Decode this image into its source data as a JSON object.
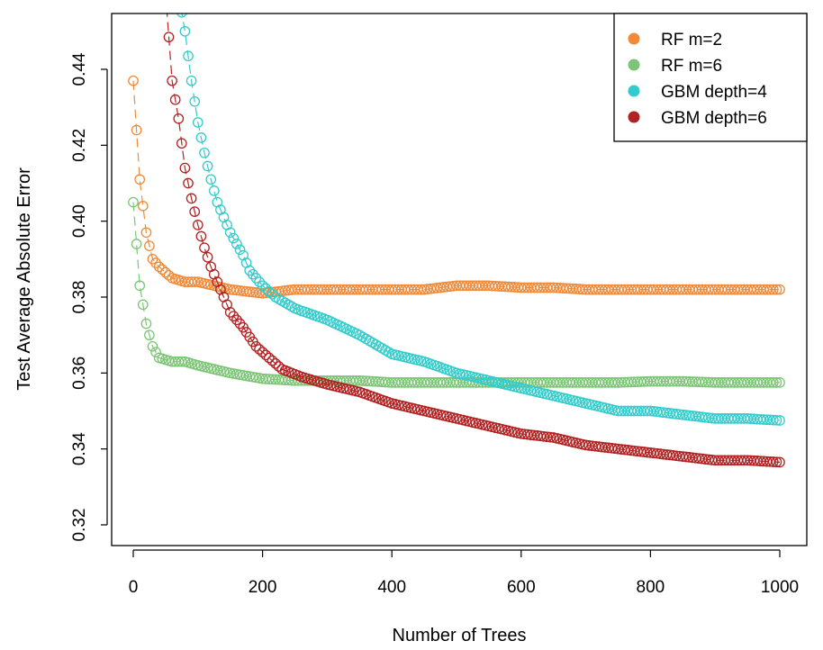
{
  "chart_data": {
    "type": "line",
    "title": "",
    "xlabel": "Number of Trees",
    "ylabel": "Test Average Absolute Error",
    "xlim": [
      0,
      1000
    ],
    "ylim": [
      0.32,
      0.45
    ],
    "xticks": [
      "0",
      "200",
      "400",
      "600",
      "800",
      "1000"
    ],
    "yticks": [
      "0.32",
      "0.34",
      "0.36",
      "0.38",
      "0.40",
      "0.42",
      "0.44"
    ],
    "legend_position": "top-right",
    "marker": "open-circle",
    "grid": false,
    "series": [
      {
        "name": "RF m=2",
        "color": "#f08a38",
        "points": [
          [
            0,
            0.437
          ],
          [
            10,
            0.411
          ],
          [
            20,
            0.397
          ],
          [
            30,
            0.39
          ],
          [
            40,
            0.388
          ],
          [
            60,
            0.385
          ],
          [
            80,
            0.384
          ],
          [
            100,
            0.384
          ],
          [
            150,
            0.382
          ],
          [
            200,
            0.381
          ],
          [
            250,
            0.382
          ],
          [
            300,
            0.382
          ],
          [
            350,
            0.382
          ],
          [
            400,
            0.382
          ],
          [
            450,
            0.382
          ],
          [
            500,
            0.383
          ],
          [
            550,
            0.383
          ],
          [
            600,
            0.3825
          ],
          [
            650,
            0.3825
          ],
          [
            700,
            0.382
          ],
          [
            750,
            0.382
          ],
          [
            800,
            0.382
          ],
          [
            850,
            0.382
          ],
          [
            900,
            0.382
          ],
          [
            950,
            0.382
          ],
          [
            1000,
            0.382
          ]
        ]
      },
      {
        "name": "RF m=6",
        "color": "#7cc576",
        "points": [
          [
            0,
            0.405
          ],
          [
            10,
            0.383
          ],
          [
            20,
            0.373
          ],
          [
            30,
            0.367
          ],
          [
            40,
            0.364
          ],
          [
            60,
            0.363
          ],
          [
            80,
            0.363
          ],
          [
            100,
            0.362
          ],
          [
            150,
            0.36
          ],
          [
            200,
            0.3585
          ],
          [
            250,
            0.358
          ],
          [
            300,
            0.358
          ],
          [
            350,
            0.358
          ],
          [
            400,
            0.3575
          ],
          [
            450,
            0.3575
          ],
          [
            500,
            0.3575
          ],
          [
            550,
            0.3575
          ],
          [
            600,
            0.3575
          ],
          [
            650,
            0.3575
          ],
          [
            700,
            0.3575
          ],
          [
            750,
            0.3575
          ],
          [
            800,
            0.3578
          ],
          [
            850,
            0.3578
          ],
          [
            900,
            0.3575
          ],
          [
            950,
            0.3575
          ],
          [
            1000,
            0.3575
          ]
        ]
      },
      {
        "name": "GBM depth=4",
        "color": "#33cccc",
        "points": [
          [
            70,
            0.46
          ],
          [
            80,
            0.45
          ],
          [
            90,
            0.437
          ],
          [
            100,
            0.426
          ],
          [
            110,
            0.418
          ],
          [
            120,
            0.411
          ],
          [
            130,
            0.405
          ],
          [
            140,
            0.401
          ],
          [
            150,
            0.397
          ],
          [
            160,
            0.394
          ],
          [
            170,
            0.391
          ],
          [
            180,
            0.387
          ],
          [
            200,
            0.383
          ],
          [
            220,
            0.38
          ],
          [
            250,
            0.377
          ],
          [
            300,
            0.374
          ],
          [
            350,
            0.37
          ],
          [
            400,
            0.365
          ],
          [
            450,
            0.363
          ],
          [
            500,
            0.36
          ],
          [
            550,
            0.358
          ],
          [
            600,
            0.356
          ],
          [
            650,
            0.354
          ],
          [
            700,
            0.352
          ],
          [
            750,
            0.35
          ],
          [
            800,
            0.35
          ],
          [
            850,
            0.349
          ],
          [
            900,
            0.348
          ],
          [
            950,
            0.348
          ],
          [
            1000,
            0.3475
          ]
        ]
      },
      {
        "name": "GBM depth=6",
        "color": "#b22222",
        "points": [
          [
            50,
            0.46
          ],
          [
            60,
            0.437
          ],
          [
            70,
            0.427
          ],
          [
            80,
            0.414
          ],
          [
            90,
            0.406
          ],
          [
            100,
            0.399
          ],
          [
            110,
            0.393
          ],
          [
            120,
            0.388
          ],
          [
            130,
            0.384
          ],
          [
            140,
            0.38
          ],
          [
            150,
            0.376
          ],
          [
            170,
            0.372
          ],
          [
            190,
            0.367
          ],
          [
            210,
            0.364
          ],
          [
            230,
            0.361
          ],
          [
            260,
            0.359
          ],
          [
            300,
            0.357
          ],
          [
            350,
            0.355
          ],
          [
            400,
            0.352
          ],
          [
            450,
            0.35
          ],
          [
            500,
            0.348
          ],
          [
            550,
            0.346
          ],
          [
            600,
            0.344
          ],
          [
            650,
            0.343
          ],
          [
            700,
            0.341
          ],
          [
            750,
            0.34
          ],
          [
            800,
            0.339
          ],
          [
            850,
            0.338
          ],
          [
            900,
            0.337
          ],
          [
            950,
            0.337
          ],
          [
            1000,
            0.3365
          ]
        ]
      }
    ]
  }
}
